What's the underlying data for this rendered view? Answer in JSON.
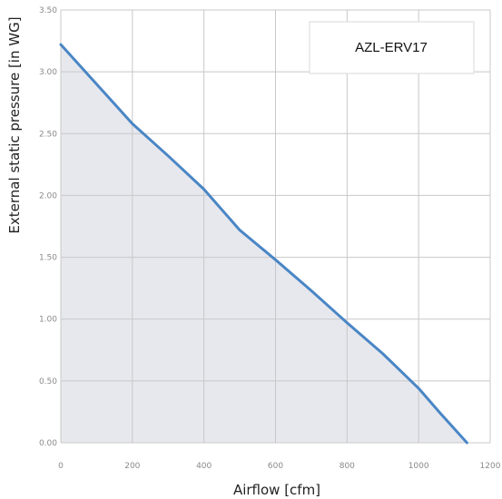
{
  "chart_data": {
    "type": "area",
    "xlabel": "Airflow [cfm]",
    "ylabel": "External static pressure [in WG]",
    "xlim": [
      0,
      1200
    ],
    "ylim": [
      0,
      3.5
    ],
    "x_ticks": [
      0,
      200,
      400,
      600,
      800,
      1000,
      1200
    ],
    "y_ticks": [
      "0.00",
      "0.50",
      "1.00",
      "1.50",
      "2.00",
      "2.50",
      "3.00",
      "3.50"
    ],
    "x_tick_labels": [
      "0",
      "200",
      "400",
      "600",
      "800",
      "1000",
      "1200"
    ],
    "grid": true,
    "legend_position": "top-right",
    "series": [
      {
        "name": "AZL-ERV17",
        "color": "#4a86c5",
        "fill_color": "#e6e8ee",
        "x": [
          0,
          100,
          200,
          300,
          400,
          500,
          600,
          700,
          800,
          900,
          1000,
          1060,
          1135
        ],
        "y": [
          3.22,
          2.9,
          2.58,
          2.32,
          2.05,
          1.72,
          1.48,
          1.23,
          0.97,
          0.72,
          0.44,
          0.24,
          0.0
        ]
      }
    ]
  }
}
